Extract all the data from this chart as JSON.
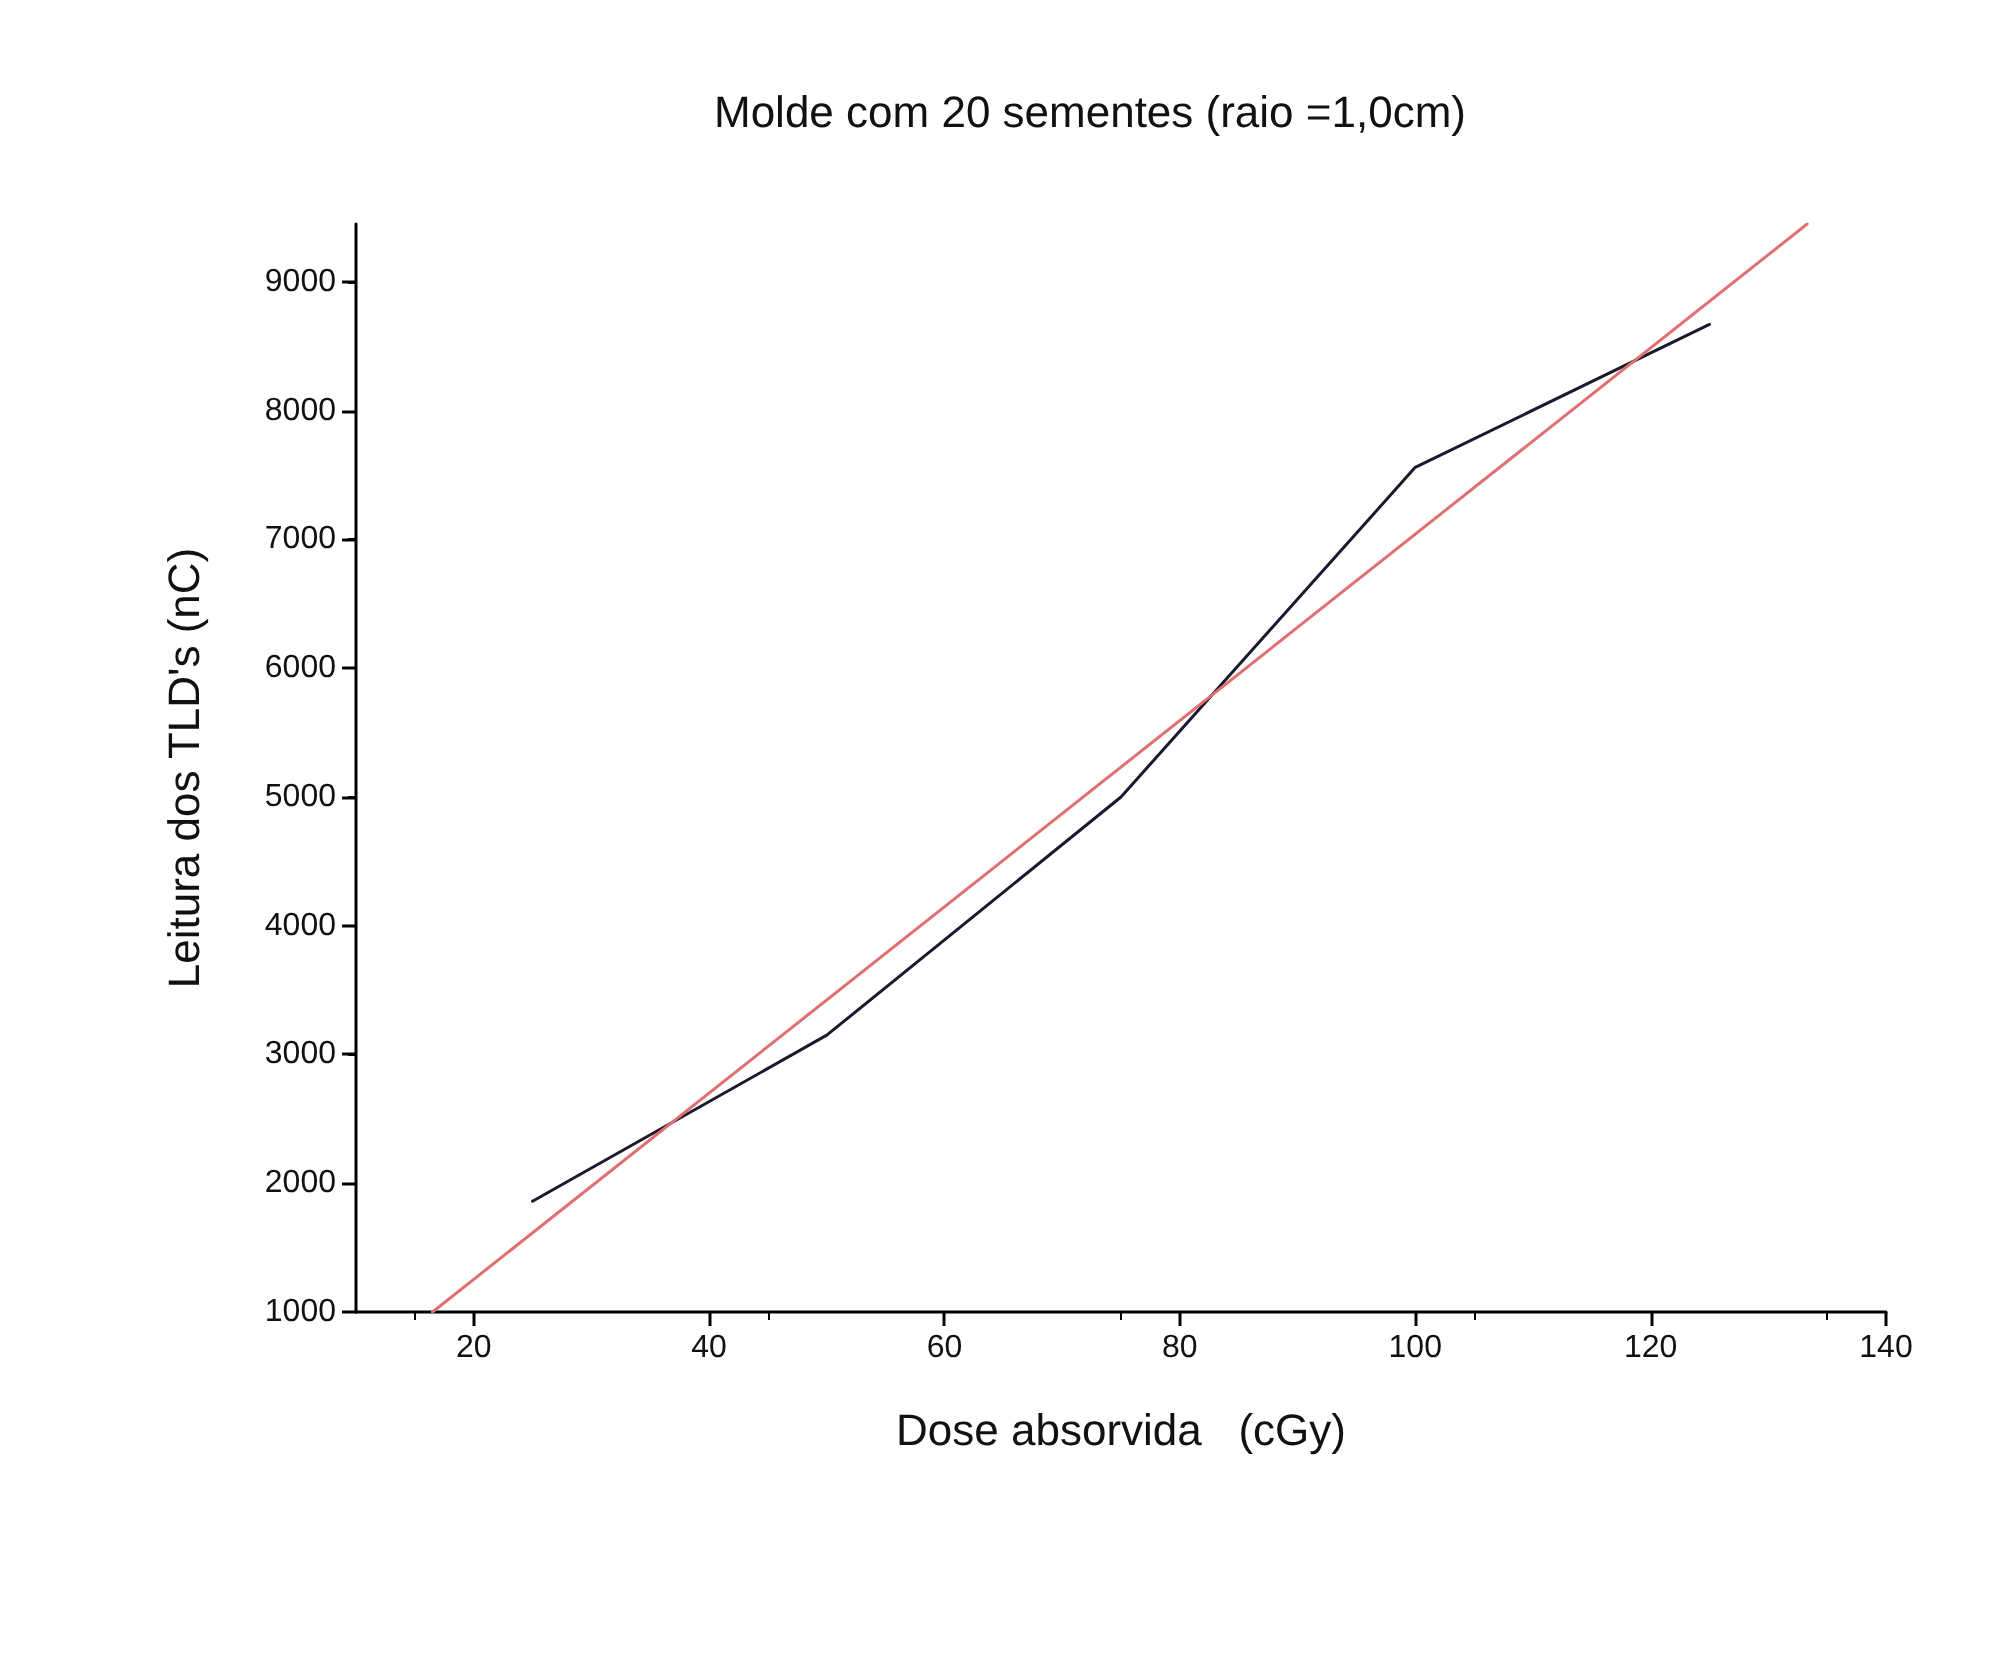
{
  "chart_data": {
    "type": "line",
    "title": "Molde com 20 sementes (raio =1,0cm)",
    "xlabel": "Dose absorvida   (cGy)",
    "ylabel": "Leitura dos TLD's (nC)",
    "xlim": [
      10,
      140
    ],
    "xticks": [
      20,
      40,
      60,
      80,
      100,
      120,
      140
    ],
    "ylim": [
      1000,
      9450
    ],
    "yticks": [
      1000,
      2000,
      3000,
      4000,
      5000,
      6000,
      7000,
      8000,
      9000
    ],
    "marker": "none",
    "line_style": "solid",
    "series": [
      {
        "color": "#1a1a2e",
        "x": [
          25,
          50,
          75,
          100,
          125
        ],
        "values": [
          1860,
          3150,
          5000,
          7560,
          8670
        ]
      },
      {
        "color": "#e07070",
        "x": [
          16.5,
          133.3
        ],
        "values": [
          1000,
          9450
        ]
      }
    ]
  }
}
